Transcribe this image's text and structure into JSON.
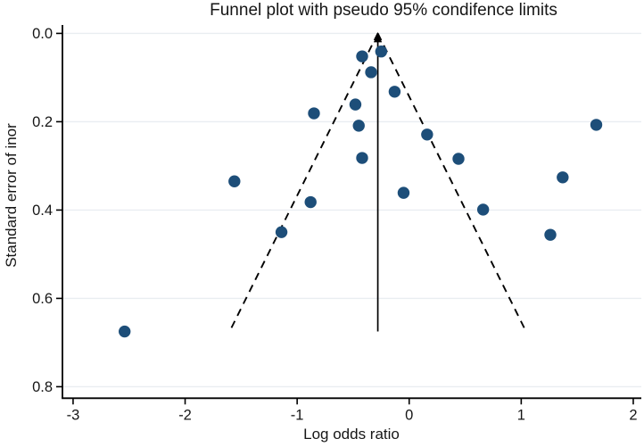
{
  "chart_data": {
    "type": "scatter",
    "title": "Funnel plot with pseudo 95% condifence limits",
    "xlabel": "Log odds ratio",
    "ylabel": "Standard error of inor",
    "x_ticks": [
      -3,
      -2,
      -1,
      0,
      1,
      2
    ],
    "y_ticks": [
      0.0,
      0.2,
      0.4,
      0.6,
      0.8
    ],
    "xlim": [
      -3.095,
      2.072
    ],
    "ylim": [
      -0.015,
      0.826
    ],
    "y_axis_reversed": true,
    "grid": "horizontal",
    "legend": "none",
    "funnel": {
      "pooled_log_or": -0.28,
      "z": 1.96,
      "max_se": 0.675,
      "limit_line_style": "dashed",
      "center_line_style": "solid-with-up-arrow"
    },
    "points": [
      {
        "log_or": -2.54,
        "se": 0.675
      },
      {
        "log_or": -1.56,
        "se": 0.335
      },
      {
        "log_or": -1.14,
        "se": 0.45
      },
      {
        "log_or": -0.88,
        "se": 0.382
      },
      {
        "log_or": -0.85,
        "se": 0.181
      },
      {
        "log_or": -0.48,
        "se": 0.161
      },
      {
        "log_or": -0.45,
        "se": 0.209
      },
      {
        "log_or": -0.42,
        "se": 0.052
      },
      {
        "log_or": -0.42,
        "se": 0.282
      },
      {
        "log_or": -0.34,
        "se": 0.088
      },
      {
        "log_or": -0.25,
        "se": 0.041
      },
      {
        "log_or": -0.13,
        "se": 0.132
      },
      {
        "log_or": -0.05,
        "se": 0.361
      },
      {
        "log_or": 0.16,
        "se": 0.229
      },
      {
        "log_or": 0.44,
        "se": 0.284
      },
      {
        "log_or": 0.66,
        "se": 0.399
      },
      {
        "log_or": 1.26,
        "se": 0.456
      },
      {
        "log_or": 1.37,
        "se": 0.326
      },
      {
        "log_or": 1.67,
        "se": 0.207
      }
    ],
    "colors": {
      "marker": "#1d4e79",
      "axis": "#000000",
      "grid": "#e9edf1",
      "line": "#000000",
      "background": "#ffffff"
    }
  }
}
